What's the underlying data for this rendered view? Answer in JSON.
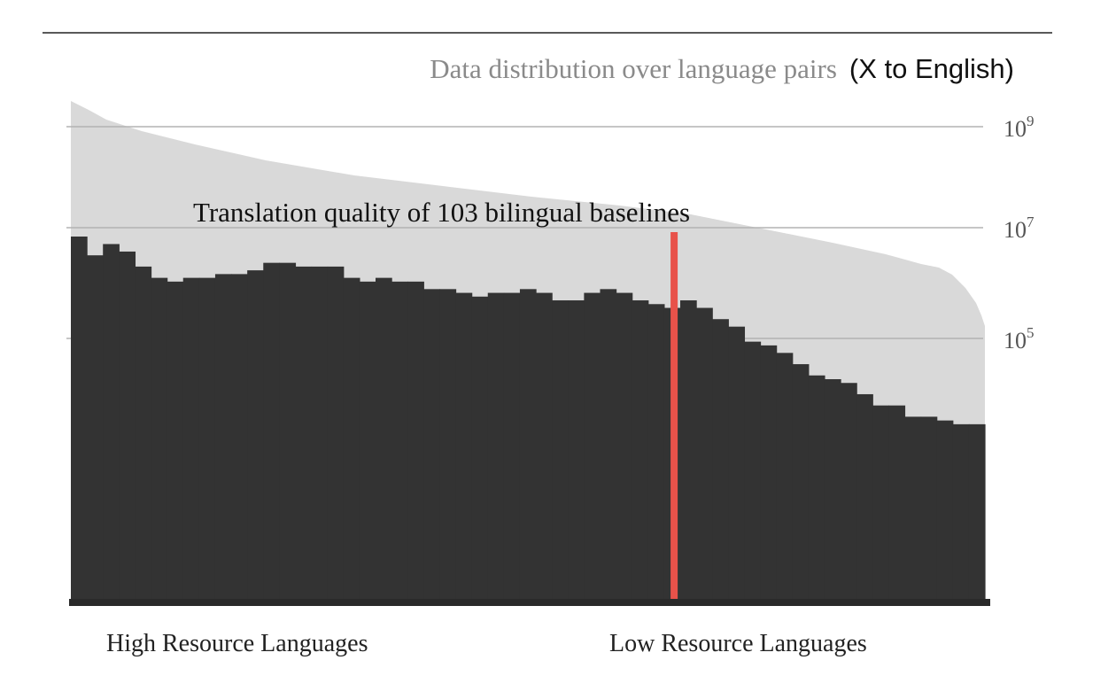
{
  "title": {
    "serif_part": "Data distribution over language pairs",
    "sans_part": "(X to English)"
  },
  "chart_data": {
    "type": "area",
    "overlay_title": "Translation quality of 103 bilingual baselines",
    "x_axis": {
      "left_label": "High Resource Languages",
      "right_label": "Low Resource Languages"
    },
    "y_axis": {
      "scale": "log",
      "ticks": [
        {
          "value": 1000000000,
          "base": "10",
          "exp": "9"
        },
        {
          "value": 10000000,
          "base": "10",
          "exp": "7"
        },
        {
          "value": 100000,
          "base": "10",
          "exp": "5"
        }
      ]
    },
    "grid": true,
    "colors": {
      "data_distribution": "#d9d9d9",
      "translation_quality": "#333333",
      "divider": "#e8524a",
      "gridline": "#b3b3b3",
      "tick_text": "#555555"
    },
    "series": [
      {
        "role": "data distribution (light area, log scale, decreasing)",
        "curve_shape": "monotonically decreasing from above 10^9 at the highest-resource language to about 10^5.5 at the lowest-resource language"
      },
      {
        "role": "translation quality (dark step area)",
        "step_heights_relative": [
          0.97,
          0.92,
          0.95,
          0.93,
          0.89,
          0.86,
          0.85,
          0.86,
          0.86,
          0.87,
          0.87,
          0.88,
          0.9,
          0.9,
          0.89,
          0.89,
          0.89,
          0.86,
          0.85,
          0.86,
          0.85,
          0.85,
          0.83,
          0.83,
          0.82,
          0.81,
          0.82,
          0.82,
          0.83,
          0.82,
          0.8,
          0.8,
          0.82,
          0.83,
          0.82,
          0.8,
          0.79,
          0.78,
          0.8,
          0.78,
          0.75,
          0.73,
          0.69,
          0.68,
          0.66,
          0.63,
          0.6,
          0.59,
          0.58,
          0.55,
          0.52,
          0.52,
          0.49,
          0.49,
          0.48,
          0.47,
          0.47
        ]
      }
    ],
    "divider_position_relative": 0.66
  }
}
